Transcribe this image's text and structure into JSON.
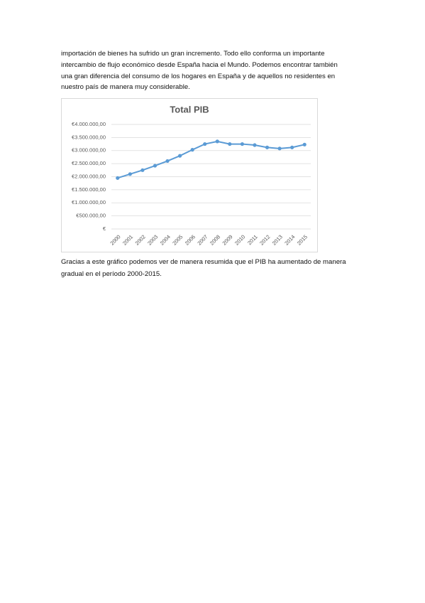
{
  "paragraphs": [
    [
      "importación de bienes ha sufrido un gran incremento. Todo ello conforma un importante",
      "intercambio de flujo económico desde España hacia el Mundo. Podemos encontrar también",
      "una gran diferencia del consumo de los hogares en España y de aquellos no residentes en",
      "nuestro país de manera muy considerable."
    ],
    [
      "Gracias a este gráfico podemos ver de manera resumida que el PIB ha aumentado de manera",
      "gradual en el período 2000-2015."
    ]
  ],
  "chart_data": {
    "type": "line",
    "title": "Total PIB",
    "categories": [
      "2000",
      "2001",
      "2002",
      "2003",
      "2004",
      "2005",
      "2006",
      "2007",
      "2008",
      "2009",
      "2010",
      "2011",
      "2012",
      "2013",
      "2014",
      "2015"
    ],
    "values": [
      1950000,
      2100000,
      2250000,
      2420000,
      2600000,
      2800000,
      3030000,
      3250000,
      3350000,
      3250000,
      3250000,
      3210000,
      3120000,
      3080000,
      3120000,
      3230000
    ],
    "color": "#5b9bd5",
    "ylim": [
      0,
      4000000
    ],
    "yticks": [
      {
        "value": 0,
        "label": "€"
      },
      {
        "value": 500000,
        "label": "€500.000,00"
      },
      {
        "value": 1000000,
        "label": "€1.000.000,00"
      },
      {
        "value": 1500000,
        "label": "€1.500.000,00"
      },
      {
        "value": 2000000,
        "label": "€2.000.000,00"
      },
      {
        "value": 2500000,
        "label": "€2.500.000,00"
      },
      {
        "value": 3000000,
        "label": "€3.000.000,00"
      },
      {
        "value": 3500000,
        "label": "€3.500.000,00"
      },
      {
        "value": 4000000,
        "label": "€4.000.000,00"
      }
    ],
    "grid": true
  }
}
